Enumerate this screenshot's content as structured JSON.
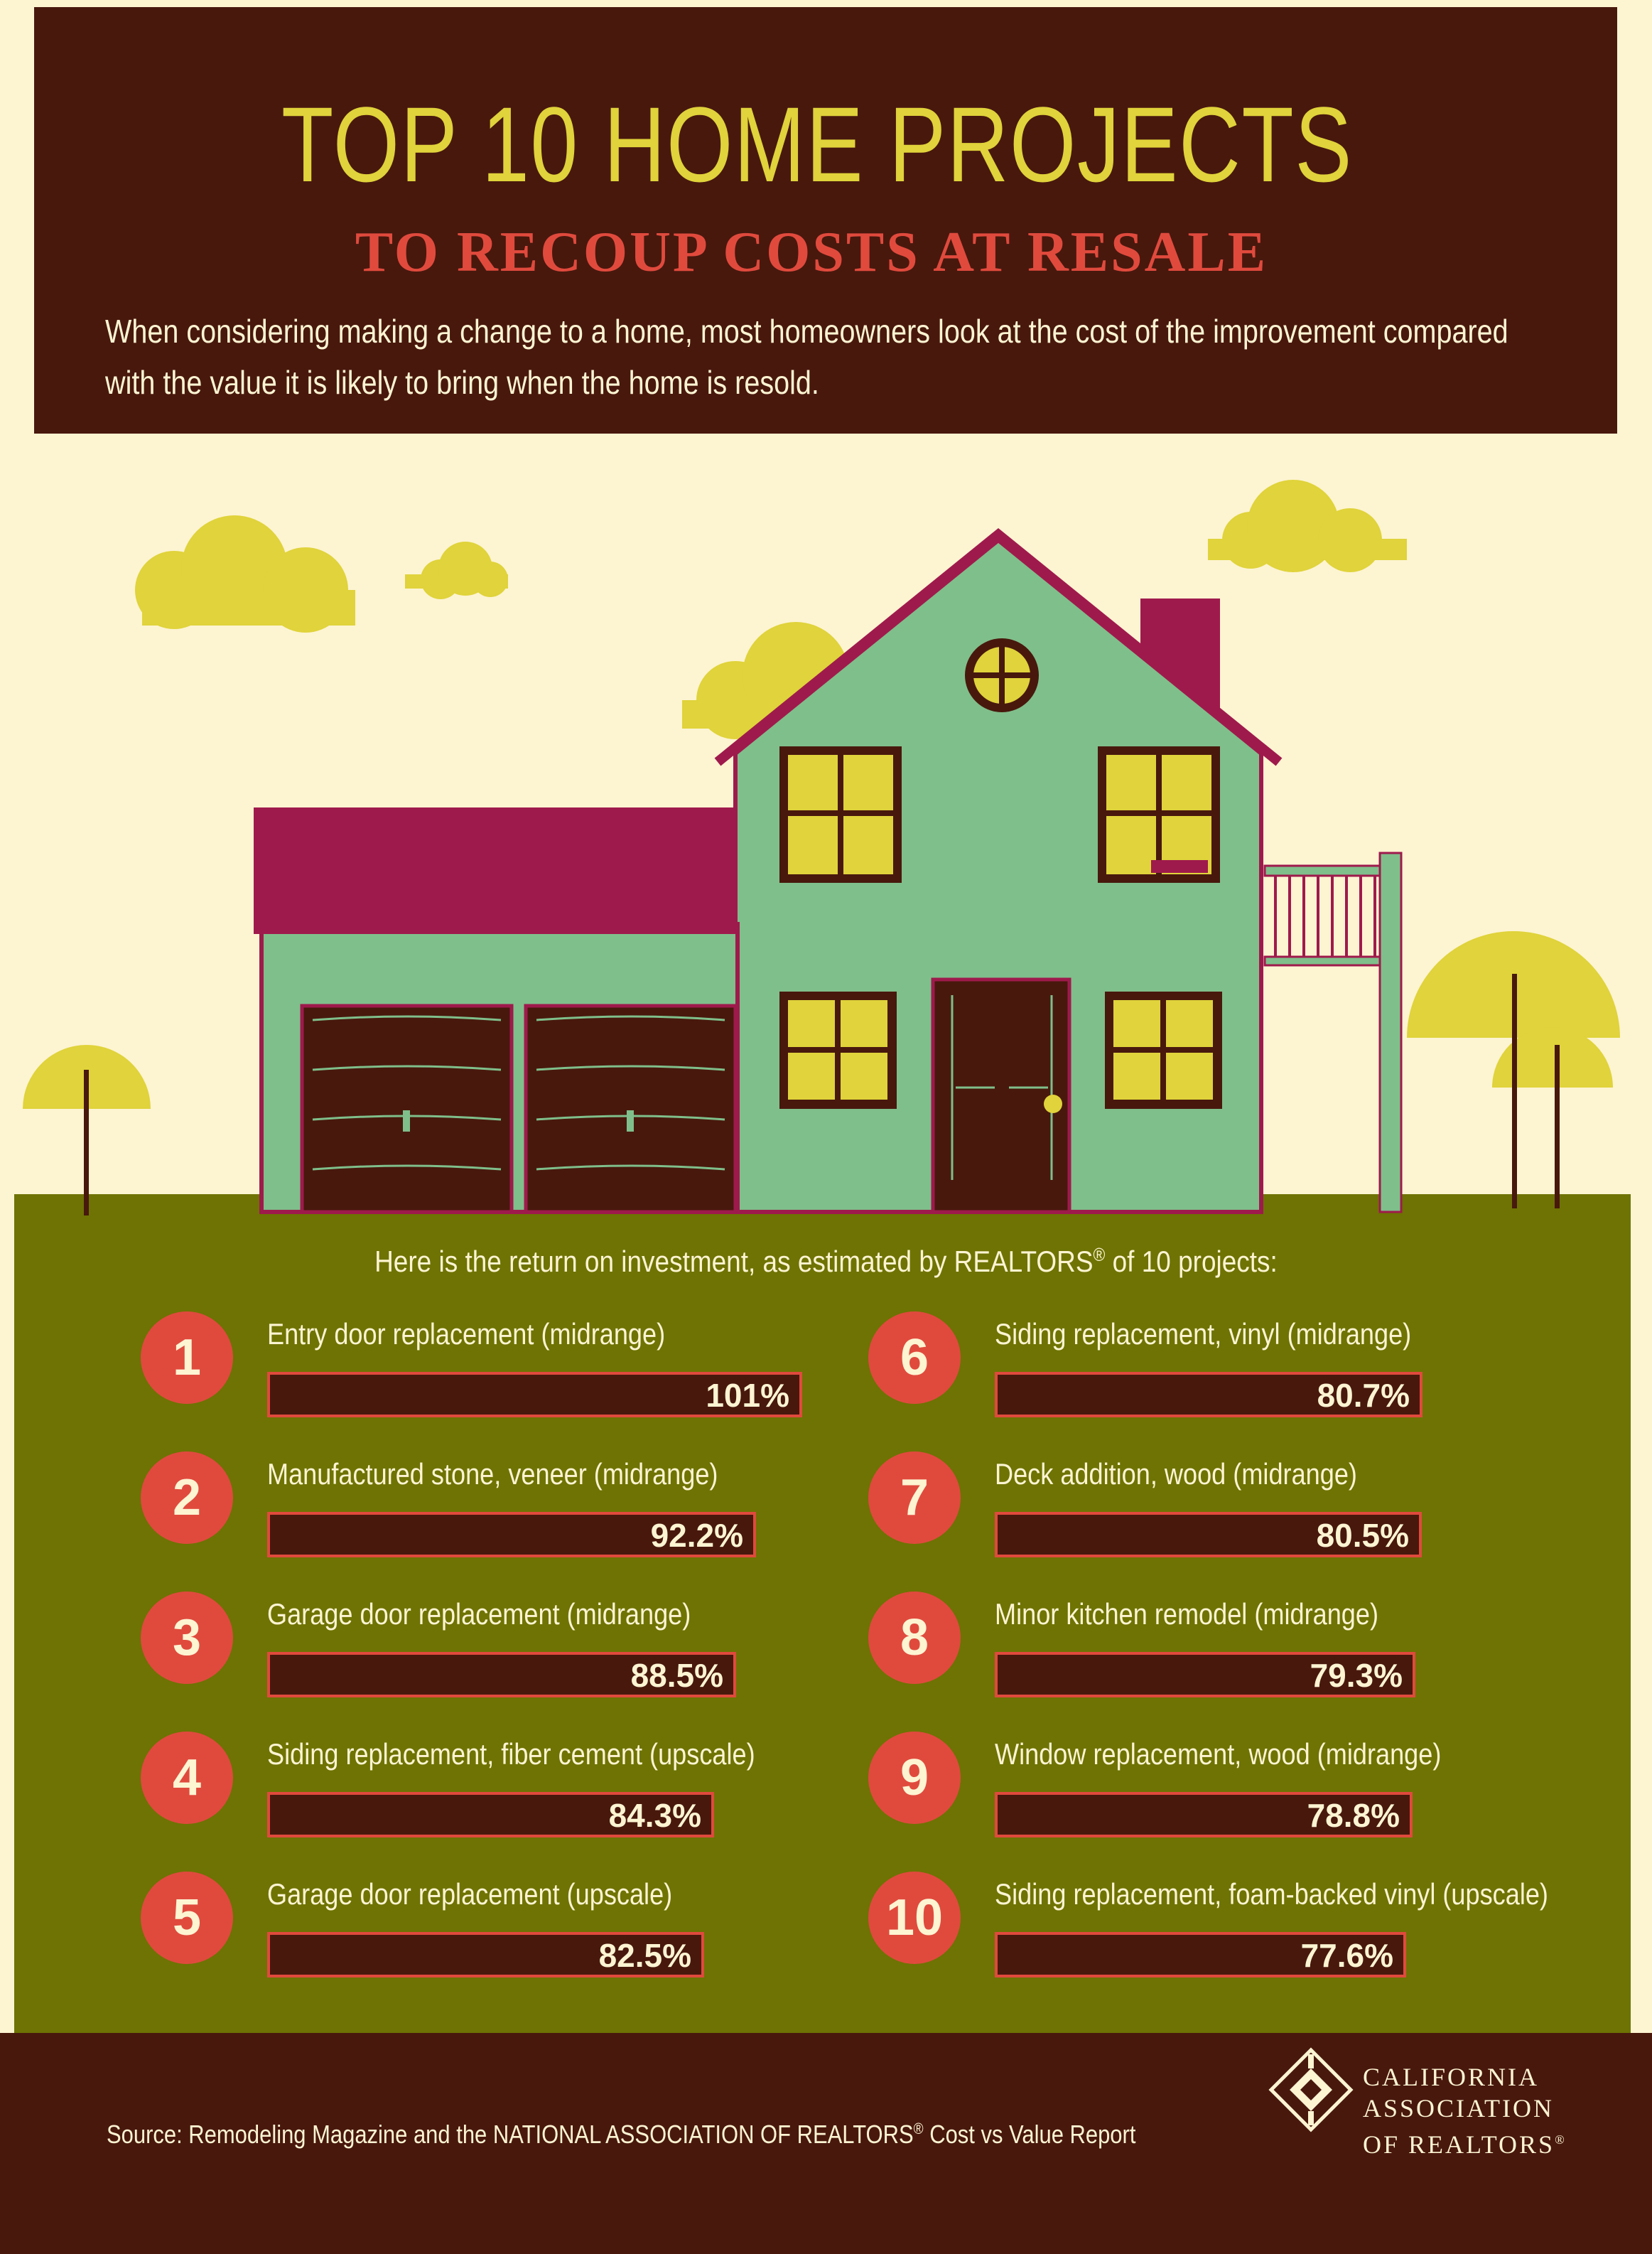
{
  "header": {
    "title": "TOP 10 HOME PROJECTS",
    "subtitle": "TO RECOUP COSTS AT RESALE",
    "intro_line1": "When considering making a change to a home, most homeowners look at the cost of the improvement compared",
    "intro_line2": "with the value it is likely to bring when the home is resold."
  },
  "roi_heading": {
    "text": "Here is the return on investment, as estimated by REALTORS",
    "reg": "®",
    "text_end": " of 10 projects:"
  },
  "footer": {
    "source_start": "Source: Remodeling Magazine and the NATIONAL ASSOCIATION OF REALTORS",
    "source_reg": "®",
    "source_end": " Cost vs Value Report",
    "logo_line1": "CALIFORNIA",
    "logo_line2": "ASSOCIATION",
    "logo_line3": "OF REALTORS",
    "logo_reg": "®"
  },
  "colors": {
    "background": "#fdf4d2",
    "dark_brown": "#48180d",
    "olive_green": "#6e7303",
    "yellow": "#e0d33b",
    "red": "#e04a3d",
    "house_green": "#7fbf8b",
    "roof_magenta": "#9f1a4c"
  },
  "chart_data": {
    "type": "bar",
    "categories": [
      "Entry door replacement (midrange)",
      "Manufactured stone, veneer (midrange)",
      "Garage door replacement (midrange)",
      "Siding replacement, fiber cement (upscale)",
      "Garage door replacement (upscale)",
      "Siding replacement, vinyl (midrange)",
      "Deck addition, wood (midrange)",
      "Minor kitchen remodel (midrange)",
      "Window replacement, wood (midrange)",
      "Siding replacement, foam-backed vinyl (upscale)"
    ],
    "ranks": [
      "1",
      "2",
      "3",
      "4",
      "5",
      "6",
      "7",
      "8",
      "9",
      "10"
    ],
    "values": [
      101,
      92.2,
      88.5,
      84.3,
      82.5,
      80.7,
      80.5,
      79.3,
      78.8,
      77.6
    ],
    "value_labels": [
      "101%",
      "92.2%",
      "88.5%",
      "84.3%",
      "82.5%",
      "80.7%",
      "80.5%",
      "79.3%",
      "78.8%",
      "77.6%"
    ],
    "unit": "%"
  }
}
